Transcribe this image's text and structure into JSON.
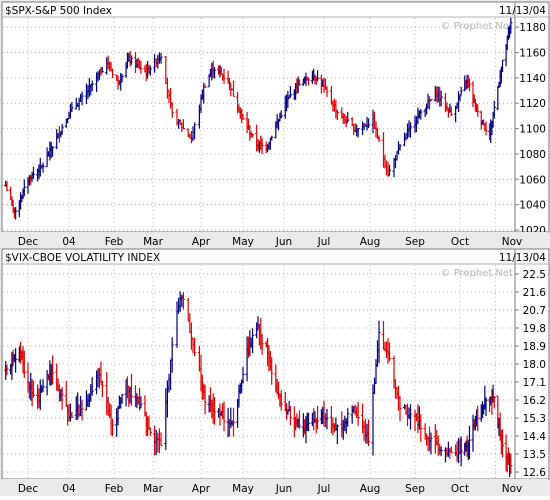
{
  "chart_data": [
    {
      "type": "ohlc",
      "title": "$SPX-S&P 500 Index",
      "date": "11/13/04",
      "watermark": "© Prophet.Net",
      "x_tick_labels": [
        "Dec",
        "04",
        "Feb",
        "Mar",
        "Apr",
        "May",
        "Jun",
        "Jul",
        "Aug",
        "Sep",
        "Oct",
        "Nov"
      ],
      "y_tick_labels": [
        "1020",
        "1040",
        "1060",
        "1080",
        "1100",
        "1120",
        "1140",
        "1160",
        "1180"
      ],
      "ylim": [
        1020,
        1188
      ],
      "colors": {
        "up": "#000080",
        "down": "#e00000"
      },
      "points": [
        {
          "x": "Nov 13 03",
          "close": 1055
        },
        {
          "x": "Nov 21 03",
          "close": 1033
        },
        {
          "x": "Dec 1 03",
          "close": 1060
        },
        {
          "x": "Dec 12 03",
          "close": 1071
        },
        {
          "x": "Dec 31 03",
          "close": 1112
        },
        {
          "x": "Jan 12 04",
          "close": 1128
        },
        {
          "x": "Jan 26 04",
          "close": 1152
        },
        {
          "x": "Feb 3 04",
          "close": 1136
        },
        {
          "x": "Feb 11 04",
          "close": 1155
        },
        {
          "x": "Feb 24 04",
          "close": 1144
        },
        {
          "x": "Mar 5 04",
          "close": 1158
        },
        {
          "x": "Mar 12 04",
          "close": 1111
        },
        {
          "x": "Mar 24 04",
          "close": 1092
        },
        {
          "x": "Apr 1 04",
          "close": 1132
        },
        {
          "x": "Apr 8 04",
          "close": 1148
        },
        {
          "x": "Apr 19 04",
          "close": 1138
        },
        {
          "x": "Apr 30 04",
          "close": 1107
        },
        {
          "x": "May 10 04",
          "close": 1088
        },
        {
          "x": "May 17 04",
          "close": 1085
        },
        {
          "x": "Jun 1 04",
          "close": 1121
        },
        {
          "x": "Jun 10 04",
          "close": 1136
        },
        {
          "x": "Jun 23 04",
          "close": 1142
        },
        {
          "x": "Jul 1 04",
          "close": 1130
        },
        {
          "x": "Jul 9 04",
          "close": 1113
        },
        {
          "x": "Jul 21 04",
          "close": 1099
        },
        {
          "x": "Aug 2 04",
          "close": 1106
        },
        {
          "x": "Aug 12 04",
          "close": 1064
        },
        {
          "x": "Aug 23 04",
          "close": 1093
        },
        {
          "x": "Sep 3 04",
          "close": 1113
        },
        {
          "x": "Sep 14 04",
          "close": 1128
        },
        {
          "x": "Sep 24 04",
          "close": 1111
        },
        {
          "x": "Oct 6 04",
          "close": 1140
        },
        {
          "x": "Oct 15 04",
          "close": 1112
        },
        {
          "x": "Oct 25 04",
          "close": 1095
        },
        {
          "x": "Nov 3 04",
          "close": 1143
        },
        {
          "x": "Nov 12 04",
          "close": 1184
        }
      ]
    },
    {
      "type": "ohlc",
      "title": "$VIX-CBOE VOLATILITY INDEX",
      "date": "11/13/04",
      "watermark": "© Prophet.Net",
      "x_tick_labels": [
        "Dec",
        "04",
        "Feb",
        "Mar",
        "Apr",
        "May",
        "Jun",
        "Jul",
        "Aug",
        "Sep",
        "Oct",
        "Nov"
      ],
      "y_tick_labels": [
        "12.6",
        "13.5",
        "14.4",
        "15.3",
        "16.2",
        "17.1",
        "18.0",
        "18.9",
        "19.8",
        "20.7",
        "21.6",
        "22.5"
      ],
      "ylim": [
        12.3,
        23.0
      ],
      "colors": {
        "up": "#000080",
        "down": "#e00000"
      },
      "points": [
        {
          "x": "Nov 13 03",
          "close": 17.5
        },
        {
          "x": "Nov 24 03",
          "close": 18.8
        },
        {
          "x": "Dec 1 03",
          "close": 16.9
        },
        {
          "x": "Dec 9 03",
          "close": 16.3
        },
        {
          "x": "Dec 18 03",
          "close": 17.8
        },
        {
          "x": "Dec 31 03",
          "close": 15.4
        },
        {
          "x": "Jan 12 04",
          "close": 15.9
        },
        {
          "x": "Jan 20 04",
          "close": 17.6
        },
        {
          "x": "Jan 30 04",
          "close": 14.8
        },
        {
          "x": "Feb 9 04",
          "close": 17.0
        },
        {
          "x": "Feb 20 04",
          "close": 15.8
        },
        {
          "x": "Feb 27 04",
          "close": 14.5
        },
        {
          "x": "Mar 5 04",
          "close": 14.1
        },
        {
          "x": "Mar 15 04",
          "close": 20.8
        },
        {
          "x": "Mar 19 04",
          "close": 21.3
        },
        {
          "x": "Mar 25 04",
          "close": 19.0
        },
        {
          "x": "Apr 2 04",
          "close": 16.2
        },
        {
          "x": "Apr 12 04",
          "close": 15.6
        },
        {
          "x": "Apr 22 04",
          "close": 14.9
        },
        {
          "x": "May 3 04",
          "close": 18.6
        },
        {
          "x": "May 10 04",
          "close": 19.9
        },
        {
          "x": "May 17 04",
          "close": 18.7
        },
        {
          "x": "May 28 04",
          "close": 16.0
        },
        {
          "x": "Jun 7 04",
          "close": 15.2
        },
        {
          "x": "Jun 18 04",
          "close": 14.9
        },
        {
          "x": "Jun 29 04",
          "close": 15.6
        },
        {
          "x": "Jul 9 04",
          "close": 14.7
        },
        {
          "x": "Jul 20 04",
          "close": 15.8
        },
        {
          "x": "Jul 30 04",
          "close": 14.2
        },
        {
          "x": "Aug 6 04",
          "close": 19.4
        },
        {
          "x": "Aug 13 04",
          "close": 18.2
        },
        {
          "x": "Aug 20 04",
          "close": 15.9
        },
        {
          "x": "Aug 31 04",
          "close": 15.2
        },
        {
          "x": "Sep 10 04",
          "close": 14.1
        },
        {
          "x": "Sep 21 04",
          "close": 13.6
        },
        {
          "x": "Sep 30 04",
          "close": 13.4
        },
        {
          "x": "Oct 8 04",
          "close": 14.3
        },
        {
          "x": "Oct 15 04",
          "close": 15.5
        },
        {
          "x": "Oct 22 04",
          "close": 16.3
        },
        {
          "x": "Oct 29 04",
          "close": 16.2
        },
        {
          "x": "Nov 5 04",
          "close": 13.8
        },
        {
          "x": "Nov 12 04",
          "close": 12.9
        }
      ]
    }
  ]
}
